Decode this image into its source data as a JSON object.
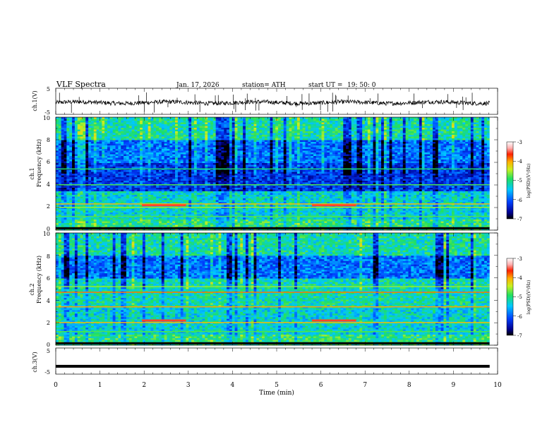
{
  "header": {
    "title": "VLF  Spectra",
    "date": "Jan. 17, 2026",
    "station": "station= ATH",
    "start_ut_label": "start  UT  =",
    "start_ut_value": "19: 50: 0"
  },
  "chart_data": [
    {
      "type": "line",
      "name": "ch1-voltage",
      "ylabel": "ch.1(V)",
      "ylim": [
        -5,
        5
      ],
      "yticks": [
        "5",
        "-5"
      ],
      "xlim": [
        0,
        10
      ],
      "series": [
        {
          "name": "ch.1",
          "description_values": "noisy trace around -0.5 V with spikes"
        }
      ]
    },
    {
      "type": "heatmap",
      "name": "ch1-spectrogram",
      "ylabel_top": "ch.1",
      "ylabel": "Frequency  (kHz)",
      "ylim": [
        0,
        10
      ],
      "yticks": [
        "0",
        "2",
        "4",
        "6",
        "8",
        "10"
      ],
      "xlim": [
        0,
        9.82
      ],
      "colorbar": {
        "label": "log(PSD)(V²/Hz)",
        "range": [
          -7,
          -3
        ],
        "ticks": [
          "-3",
          "-4",
          "-5",
          "-6",
          "-7"
        ]
      }
    },
    {
      "type": "heatmap",
      "name": "ch2-spectrogram",
      "ylabel_top": "ch.2",
      "ylabel": "Frequency  (kHz)",
      "ylim": [
        0,
        10
      ],
      "yticks": [
        "0",
        "2",
        "4",
        "6",
        "8",
        "10"
      ],
      "xlim": [
        0,
        9.82
      ],
      "colorbar": {
        "label": "log(PSD)(V²/Hz)",
        "range": [
          -7,
          -3
        ],
        "ticks": [
          "-3",
          "-4",
          "-5",
          "-6",
          "-7"
        ]
      }
    },
    {
      "type": "line",
      "name": "ch3-voltage",
      "ylabel": "ch.3(V)",
      "ylim": [
        -5,
        5
      ],
      "yticks": [
        "5",
        "-5"
      ],
      "xlim": [
        0,
        10
      ],
      "series": [
        {
          "name": "ch.3",
          "values_constant": -2
        }
      ]
    }
  ],
  "xaxis": {
    "label": "Time  (min)",
    "ticks": [
      "0",
      "1",
      "2",
      "3",
      "4",
      "5",
      "6",
      "7",
      "8",
      "9",
      "10"
    ]
  }
}
